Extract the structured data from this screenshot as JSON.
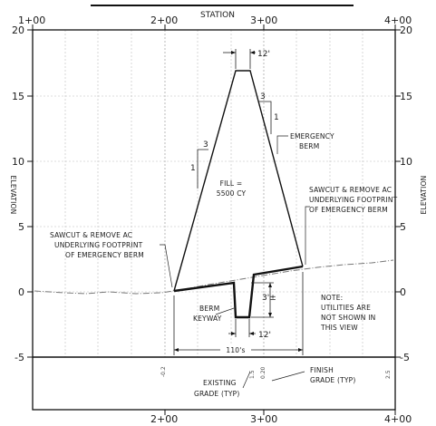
{
  "header": {
    "axis_title_top": "STATION",
    "axis_title_left": "ELEVATION",
    "axis_title_right": "ELEVATION"
  },
  "stations_top": [
    "1+00",
    "2+00",
    "3+00",
    "4+00"
  ],
  "stations_bottom": [
    "2+00",
    "3+00",
    "4+00"
  ],
  "elevations_left": [
    "20",
    "15",
    "10",
    "5",
    "0",
    "-5"
  ],
  "elevations_right": [
    "20",
    "15",
    "10",
    "5",
    "0",
    "-5"
  ],
  "dimensions": {
    "top_width": "12'",
    "slope_left_rise": "3",
    "slope_left_run": "1",
    "slope_right_rise": "3",
    "slope_right_run": "1",
    "keyway_depth": "3'±",
    "keyway_width": "12'",
    "base_width": "110's"
  },
  "labels": {
    "fill_line1": "FILL =",
    "fill_line2": "5500 CY",
    "emergency_berm_line1": "EMERGENCY",
    "emergency_berm_line2": "BERM",
    "sawcut_right_line1": "SAWCUT & REMOVE AC",
    "sawcut_right_line2": "UNDERLYING FOOTPRINT",
    "sawcut_right_line3": "OF EMERGENCY BERM",
    "sawcut_left_line1": "SAWCUT & REMOVE AC",
    "sawcut_left_line2": "UNDERLYING FOOTPRINT",
    "sawcut_left_line3": "OF EMERGENCY BERM",
    "berm_keyway_line1": "BERM",
    "berm_keyway_line2": "KEYWAY",
    "note_line1": "NOTE:",
    "note_line2": "UTILITIES ARE",
    "note_line3": "NOT SHOWN IN",
    "note_line4": "THIS VIEW",
    "existing_grade_line1": "EXISTING",
    "existing_grade_line2": "GRADE (TYP)",
    "finish_grade_line1": "FINISH",
    "finish_grade_line2": "GRADE (TYP)"
  },
  "grade_readouts": {
    "left": "-0.2",
    "mid_1": "1.5",
    "mid_2": "0.20",
    "right": "2.5"
  }
}
